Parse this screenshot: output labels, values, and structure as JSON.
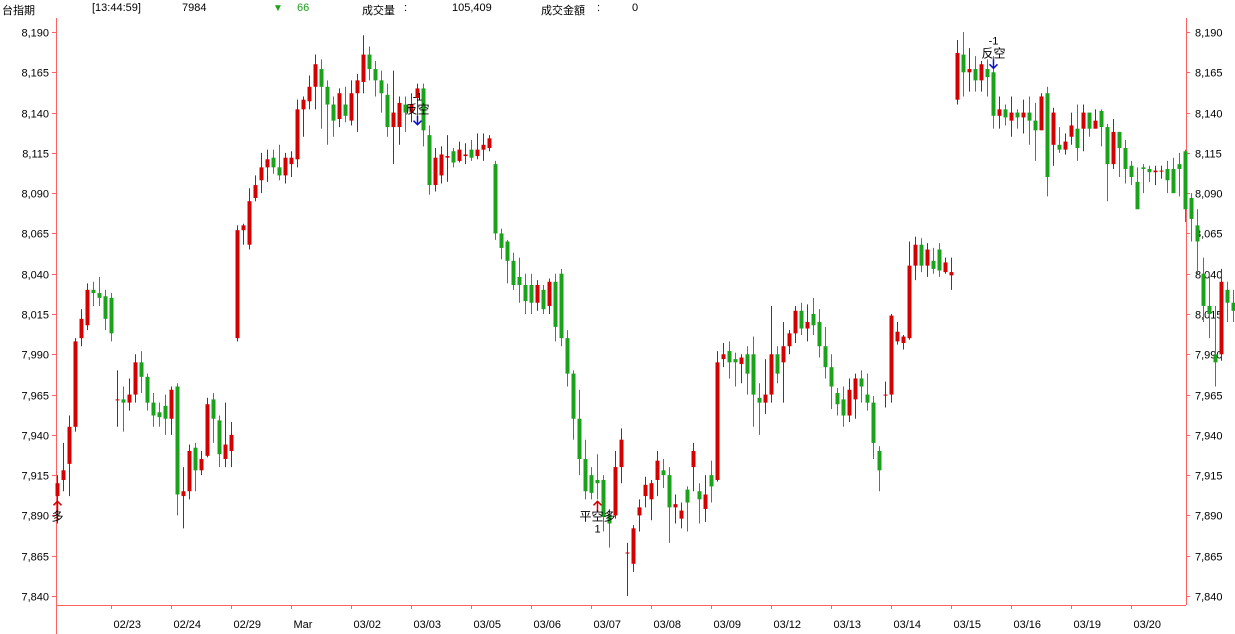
{
  "header": {
    "symbol": "台指期",
    "time": "[13:44:59]",
    "price": "7984",
    "change_arrow": "▼",
    "change": "66",
    "volume_label": "成交量",
    "volume_sep": ":",
    "volume": "105,409",
    "amount_label": "成交金額",
    "amount_sep": ":",
    "amount": "0"
  },
  "colors": {
    "up": "#d40000",
    "down": "#1aa31a",
    "axis": "#ff6060",
    "signal_buy": "#d40000",
    "signal_sell": "#1010c8",
    "change_down": "#1aa31a"
  },
  "chart_data": {
    "type": "candlestick",
    "ylim": [
      7830,
      8198
    ],
    "y_ticks": [
      "8,190",
      "8,165",
      "8,140",
      "8,115",
      "8,090",
      "8,065",
      "8,040",
      "8,015",
      "7,990",
      "7,965",
      "7,940",
      "7,915",
      "7,890",
      "7,865",
      "7,840"
    ],
    "y_tick_values": [
      8190,
      8165,
      8140,
      8115,
      8090,
      8065,
      8040,
      8015,
      7990,
      7965,
      7940,
      7915,
      7890,
      7865,
      7840
    ],
    "x_labels": [
      "02/23",
      "02/24",
      "02/29",
      "Mar",
      "03/02",
      "03/03",
      "03/05",
      "03/06",
      "03/07",
      "03/08",
      "03/09",
      "03/12",
      "03/13",
      "03/14",
      "03/15",
      "03/16",
      "03/19",
      "03/20"
    ],
    "x_label_index": [
      9,
      19,
      29,
      39,
      49,
      59,
      69,
      79,
      89,
      99,
      109,
      119,
      129,
      139,
      149,
      159,
      169,
      179
    ],
    "bars": [
      [
        7902,
        7910,
        7885,
        7915
      ],
      [
        7912,
        7918,
        7905,
        7935
      ],
      [
        7922,
        7945,
        7902,
        7952
      ],
      [
        7945,
        7998,
        7942,
        8000
      ],
      [
        8000,
        8012,
        7995,
        8018
      ],
      [
        8008,
        8030,
        8005,
        8034
      ],
      [
        8030,
        8028,
        8020,
        8035
      ],
      [
        8028,
        8025,
        8020,
        8038
      ],
      [
        8026,
        8012,
        8005,
        8030
      ],
      [
        8025,
        8003,
        7998,
        8028
      ],
      [
        7962,
        7962,
        7945,
        7980
      ],
      [
        7962,
        7960,
        7942,
        7970
      ],
      [
        7960,
        7965,
        7955,
        7975
      ],
      [
        7965,
        7985,
        7960,
        7990
      ],
      [
        7985,
        7976,
        7966,
        7992
      ],
      [
        7976,
        7960,
        7955,
        7978
      ],
      [
        7960,
        7952,
        7945,
        7966
      ],
      [
        7954,
        7951,
        7945,
        7960
      ],
      [
        7958,
        7950,
        7940,
        7965
      ],
      [
        7950,
        7968,
        7940,
        7970
      ],
      [
        7970,
        7903,
        7890,
        7972
      ],
      [
        7902,
        7905,
        7882,
        7920
      ],
      [
        7905,
        7930,
        7900,
        7934
      ],
      [
        7932,
        7918,
        7905,
        7935
      ],
      [
        7918,
        7925,
        7915,
        7930
      ],
      [
        7927,
        7959,
        7926,
        7963
      ],
      [
        7962,
        7950,
        7935,
        7966
      ],
      [
        7949,
        7928,
        7920,
        7952
      ],
      [
        7925,
        7934,
        7920,
        7960
      ],
      [
        7930,
        7940,
        7920,
        7948
      ],
      [
        8000,
        8067,
        7998,
        8070
      ],
      [
        8067,
        8070,
        8058,
        8071
      ],
      [
        8058,
        8085,
        8055,
        8093
      ],
      [
        8087,
        8095,
        8085,
        8101
      ],
      [
        8098,
        8106,
        8090,
        8115
      ],
      [
        8106,
        8111,
        8097,
        8117
      ],
      [
        8112,
        8106,
        8102,
        8117
      ],
      [
        8106,
        8101,
        8098,
        8120
      ],
      [
        8101,
        8112,
        8096,
        8115
      ],
      [
        8108,
        8112,
        8100,
        8116
      ],
      [
        8111,
        8142,
        8106,
        8148
      ],
      [
        8142,
        8148,
        8125,
        8150
      ],
      [
        8147,
        8156,
        8142,
        8163
      ],
      [
        8156,
        8170,
        8142,
        8176
      ],
      [
        8167,
        8156,
        8130,
        8173
      ],
      [
        8156,
        8145,
        8120,
        8160
      ],
      [
        8145,
        8135,
        8125,
        8150
      ],
      [
        8136,
        8152,
        8131,
        8155
      ],
      [
        8145,
        8138,
        8134,
        8156
      ],
      [
        8135,
        8152,
        8132,
        8160
      ],
      [
        8152,
        8160,
        8128,
        8164
      ],
      [
        8159,
        8176,
        8152,
        8188
      ],
      [
        8176,
        8167,
        8160,
        8181
      ],
      [
        8167,
        8160,
        8150,
        8172
      ],
      [
        8160,
        8152,
        8140,
        8166
      ],
      [
        8151,
        8131,
        8125,
        8158
      ],
      [
        8131,
        8140,
        8108,
        8166
      ],
      [
        8131,
        8146,
        8120,
        8150
      ],
      [
        8145,
        8140,
        8128,
        8150
      ],
      [
        8140,
        8145,
        8134,
        8152
      ],
      [
        8149,
        8155,
        8138,
        8158
      ],
      [
        8155,
        8129,
        8119,
        8158
      ],
      [
        8126,
        8095,
        8089,
        8132
      ],
      [
        8095,
        8112,
        8091,
        8118
      ],
      [
        8101,
        8114,
        8096,
        8119
      ],
      [
        8112,
        8113,
        8097,
        8126
      ],
      [
        8116,
        8109,
        8106,
        8118
      ],
      [
        8110,
        8117,
        8109,
        8122
      ],
      [
        8113,
        8114,
        8108,
        8121
      ],
      [
        8117,
        8112,
        8110,
        8123
      ],
      [
        8113,
        8117,
        8111,
        8127
      ],
      [
        8117,
        8120,
        8110,
        8127
      ],
      [
        8118,
        8124,
        8116,
        8126
      ],
      [
        8108,
        8065,
        8061,
        8110
      ],
      [
        8065,
        8056,
        8049,
        8068
      ],
      [
        8060,
        8048,
        8034,
        8061
      ],
      [
        8048,
        8033,
        8030,
        8053
      ],
      [
        8038,
        8033,
        8022,
        8050
      ],
      [
        8033,
        8023,
        8015,
        8040
      ],
      [
        8033,
        8022,
        8015,
        8040
      ],
      [
        8022,
        8033,
        8017,
        8036
      ],
      [
        8030,
        8018,
        8015,
        8033
      ],
      [
        8020,
        8035,
        8015,
        8037
      ],
      [
        8035,
        8007,
        7998,
        8040
      ],
      [
        8040,
        8000,
        7995,
        8043
      ],
      [
        8000,
        7978,
        7970,
        8005
      ],
      [
        7978,
        7950,
        7937,
        7980
      ],
      [
        7950,
        7925,
        7915,
        7968
      ],
      [
        7925,
        7905,
        7900,
        7937
      ],
      [
        7915,
        7904,
        7900,
        7920
      ],
      [
        7912,
        7910,
        7900,
        7928
      ],
      [
        7912,
        7889,
        7880,
        7915
      ],
      [
        7890,
        7885,
        7870,
        7894
      ],
      [
        7890,
        7920,
        7888,
        7930
      ],
      [
        7920,
        7937,
        7910,
        7944
      ],
      [
        7867,
        7867,
        7840,
        7873
      ],
      [
        7860,
        7882,
        7855,
        7884
      ],
      [
        7890,
        7895,
        7880,
        7900
      ],
      [
        7902,
        7909,
        7895,
        7914
      ],
      [
        7900,
        7910,
        7887,
        7912
      ],
      [
        7912,
        7924,
        7902,
        7930
      ],
      [
        7918,
        7915,
        7907,
        7925
      ],
      [
        7915,
        7895,
        7873,
        7920
      ],
      [
        7895,
        7897,
        7885,
        7903
      ],
      [
        7888,
        7893,
        7882,
        7898
      ],
      [
        7906,
        7898,
        7880,
        7908
      ],
      [
        7920,
        7930,
        7905,
        7935
      ],
      [
        7905,
        7900,
        7885,
        7910
      ],
      [
        7894,
        7903,
        7886,
        7915
      ],
      [
        7915,
        7908,
        7898,
        7924
      ],
      [
        7912,
        7985,
        7911,
        7992
      ],
      [
        7987,
        7990,
        7982,
        7997
      ],
      [
        7992,
        7985,
        7975,
        7998
      ],
      [
        7987,
        7985,
        7970,
        7991
      ],
      [
        7984,
        7988,
        7972,
        7990
      ],
      [
        7990,
        7978,
        7965,
        7995
      ],
      [
        7990,
        7965,
        7945,
        8001
      ],
      [
        7963,
        7960,
        7940,
        7972
      ],
      [
        7960,
        7965,
        7953,
        7987
      ],
      [
        7965,
        7990,
        7960,
        8020
      ],
      [
        7990,
        7978,
        7972,
        7995
      ],
      [
        7985,
        7995,
        7960,
        8010
      ],
      [
        7995,
        8003,
        7990,
        8005
      ],
      [
        8003,
        8017,
        7997,
        8020
      ],
      [
        8017,
        8006,
        8002,
        8022
      ],
      [
        8006,
        8010,
        7998,
        8021
      ],
      [
        8015,
        8008,
        8002,
        8025
      ],
      [
        8010,
        7995,
        7988,
        8018
      ],
      [
        7995,
        7982,
        7975,
        8007
      ],
      [
        7982,
        7970,
        7956,
        7990
      ],
      [
        7966,
        7959,
        7952,
        7969
      ],
      [
        7962,
        7952,
        7945,
        7970
      ],
      [
        7952,
        7968,
        7948,
        7975
      ],
      [
        7962,
        7975,
        7950,
        7978
      ],
      [
        7975,
        7970,
        7960,
        7980
      ],
      [
        7965,
        7960,
        7955,
        7978
      ],
      [
        7960,
        7935,
        7925,
        7964
      ],
      [
        7930,
        7918,
        7905,
        7933
      ],
      [
        7965,
        7965,
        7957,
        7973
      ],
      [
        7965,
        8014,
        7960,
        8015
      ],
      [
        7998,
        8004,
        7996,
        8010
      ],
      [
        7997,
        8001,
        7993,
        8002
      ],
      [
        8000,
        8045,
        7999,
        8060
      ],
      [
        8045,
        8058,
        8036,
        8063
      ],
      [
        8058,
        8045,
        8041,
        8062
      ],
      [
        8045,
        8055,
        8038,
        8059
      ],
      [
        8048,
        8043,
        8040,
        8056
      ],
      [
        8055,
        8042,
        8038,
        8059
      ],
      [
        8041,
        8047,
        8040,
        8050
      ],
      [
        8039,
        8041,
        8030,
        8050
      ],
      [
        8148,
        8177,
        8145,
        8185
      ],
      [
        8176,
        8165,
        8150,
        8190
      ],
      [
        8165,
        8167,
        8153,
        8180
      ],
      [
        8167,
        8160,
        8153,
        8175
      ],
      [
        8160,
        8170,
        8153,
        8172
      ],
      [
        8167,
        8162,
        8150,
        8173
      ],
      [
        8165,
        8138,
        8130,
        8175
      ],
      [
        8138,
        8142,
        8130,
        8150
      ],
      [
        8142,
        8137,
        8132,
        8145
      ],
      [
        8135,
        8140,
        8125,
        8150
      ],
      [
        8140,
        8137,
        8130,
        8142
      ],
      [
        8137,
        8140,
        8127,
        8148
      ],
      [
        8140,
        8135,
        8120,
        8150
      ],
      [
        8135,
        8129,
        8110,
        8146
      ],
      [
        8129,
        8150,
        8129,
        8152
      ],
      [
        8152,
        8100,
        8088,
        8156
      ],
      [
        8120,
        8140,
        8107,
        8143
      ],
      [
        8120,
        8117,
        8115,
        8131
      ],
      [
        8117,
        8122,
        8114,
        8127
      ],
      [
        8125,
        8132,
        8120,
        8140
      ],
      [
        8130,
        8118,
        8110,
        8145
      ],
      [
        8130,
        8140,
        8116,
        8145
      ],
      [
        8140,
        8130,
        8125,
        8140
      ],
      [
        8130,
        8135,
        8130,
        8142
      ],
      [
        8141,
        8131,
        8119,
        8142
      ],
      [
        8131,
        8108,
        8085,
        8133
      ],
      [
        8108,
        8128,
        8105,
        8136
      ],
      [
        8128,
        8118,
        8100,
        8128
      ],
      [
        8118,
        8105,
        8096,
        8123
      ],
      [
        8107,
        8100,
        8095,
        8110
      ],
      [
        8097,
        8080,
        8084,
        8106
      ],
      [
        8106,
        8105,
        8090,
        8108
      ],
      [
        8105,
        8103,
        8097,
        8107
      ],
      [
        8103,
        8104,
        8095,
        8107
      ],
      [
        8104,
        8104,
        8099,
        8107
      ],
      [
        8105,
        8098,
        8090,
        8110
      ],
      [
        8105,
        8090,
        8090,
        8112
      ],
      [
        8108,
        8105,
        8088,
        8115
      ],
      [
        8116,
        8080,
        8072,
        8117
      ],
      [
        8087,
        8074,
        8060,
        8090
      ],
      [
        8070,
        8060,
        8040,
        8080
      ],
      [
        8040,
        8020,
        8010,
        8050
      ],
      [
        8020,
        8015,
        8000,
        8040
      ],
      [
        7990,
        7985,
        7970,
        8020
      ],
      [
        7990,
        8035,
        7986,
        8043
      ],
      [
        8030,
        8022,
        8010,
        8035
      ],
      [
        8022,
        8017,
        8010,
        8030
      ],
      [
        8034,
        8015,
        8005,
        8045
      ],
      [
        8010,
        8047,
        8000,
        8055
      ],
      [
        8036,
        8020,
        8010,
        8045
      ],
      [
        8040,
        8065,
        8040,
        8077
      ],
      [
        8050,
        8028,
        8020,
        8060
      ],
      [
        8030,
        8025,
        8008,
        8040
      ],
      [
        8025,
        8018,
        8010,
        8035
      ],
      [
        8018,
        7990,
        7977,
        8025
      ],
      [
        8005,
        7990,
        7965,
        8015
      ],
      [
        7993,
        7985,
        7975,
        8003
      ],
      [
        7993,
        7990,
        7980,
        7998
      ],
      [
        7980,
        7975,
        7962,
        7988
      ],
      [
        7992,
        7980,
        7955,
        7993
      ],
      [
        7957,
        7963,
        7950,
        7973
      ],
      [
        7963,
        7985,
        7955,
        7990
      ]
    ],
    "signals": [
      {
        "type": "buy",
        "label": "多",
        "index": 0,
        "price": 7900
      },
      {
        "type": "sell",
        "label": "反空",
        "qty": "-1",
        "index": 60,
        "price": 8130
      },
      {
        "type": "buy",
        "label": "平空多",
        "qty": "1",
        "index": 90,
        "price": 7900
      },
      {
        "type": "sell",
        "label": "反空",
        "qty": "-1",
        "index": 156,
        "price": 8165
      }
    ]
  }
}
